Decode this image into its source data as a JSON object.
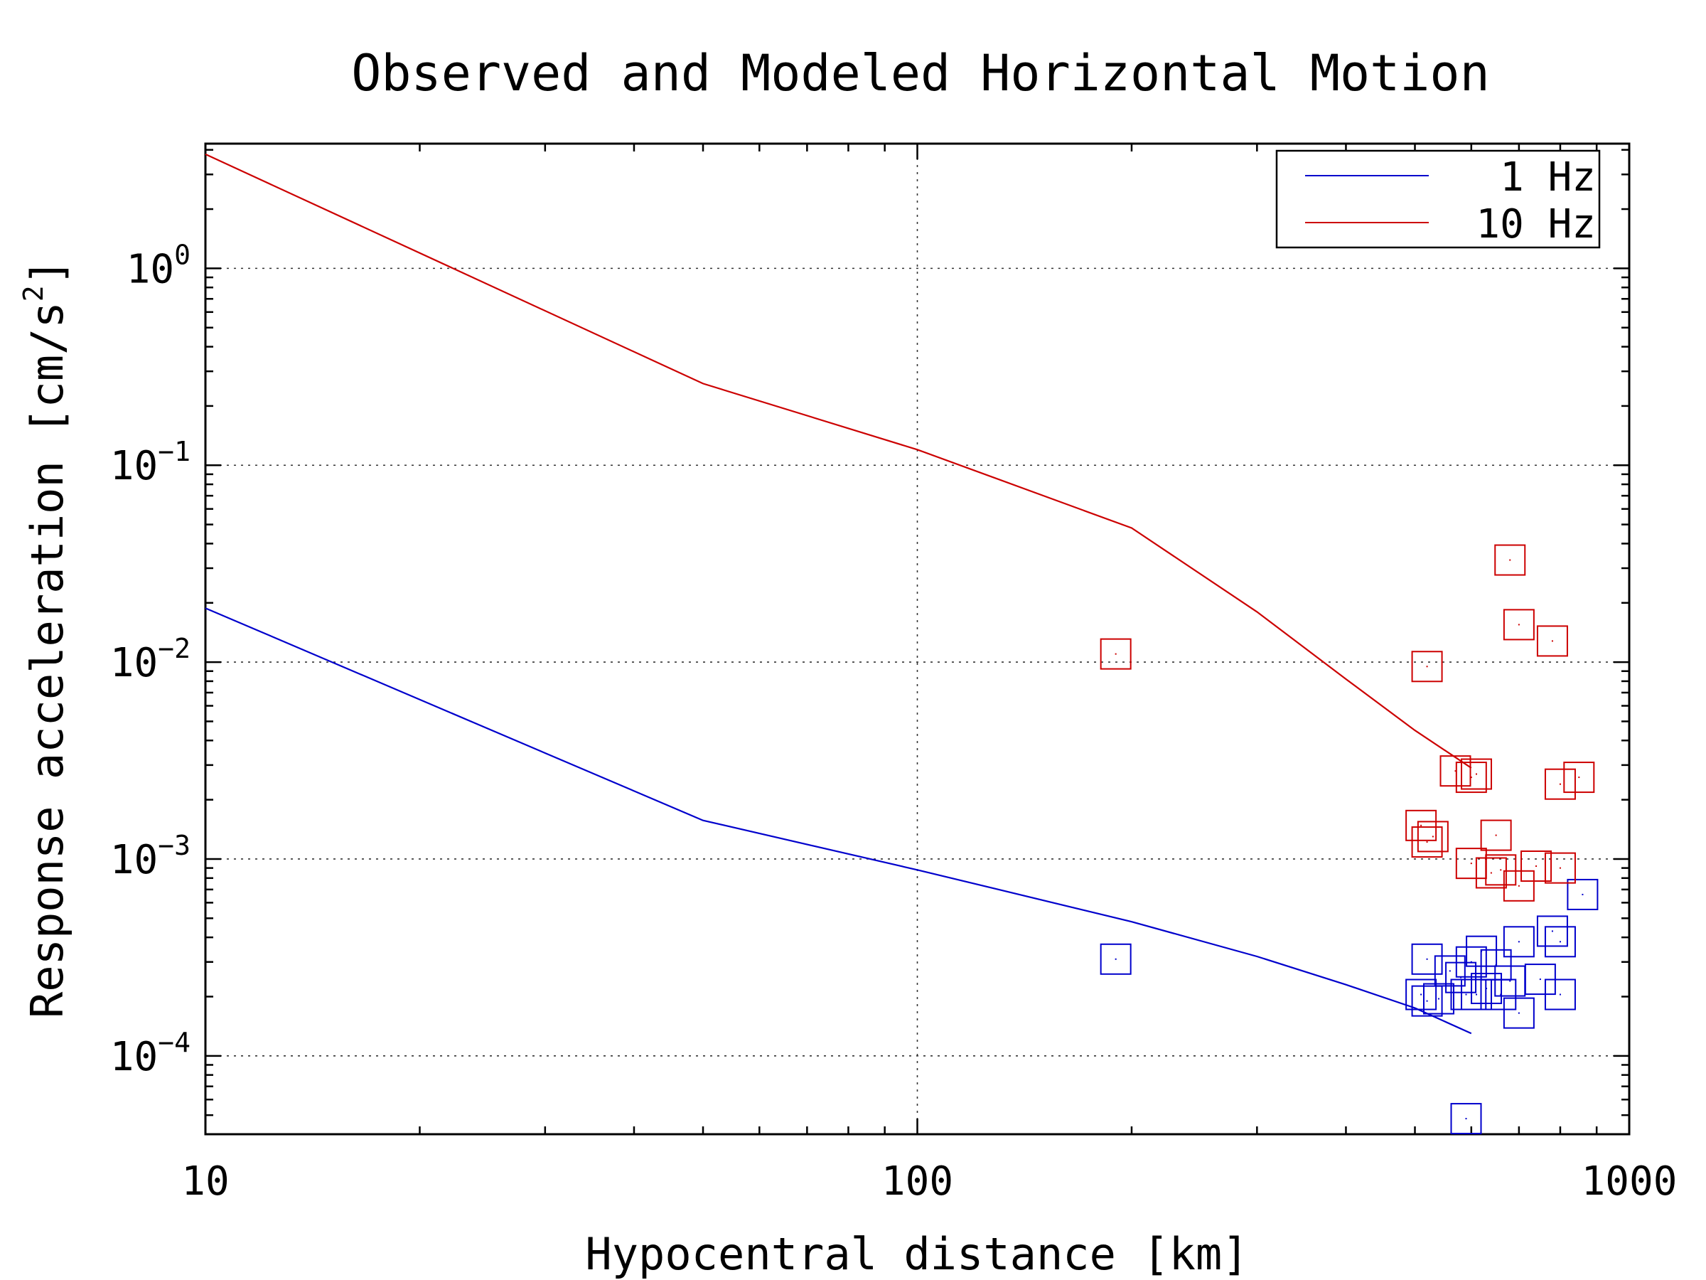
{
  "chart_data": {
    "type": "line",
    "title": "Observed and Modeled Horizontal Motion",
    "xlabel": "Hypocentral distance [km]",
    "ylabel": "Response acceleration [cm/s",
    "ylabel_sup": "2",
    "ylabel_end": "]",
    "x_scale": "log",
    "y_scale": "log",
    "xlim": [
      10,
      1000
    ],
    "ylim": [
      4e-05,
      4.3
    ],
    "grid": true,
    "legend_position": "top-right",
    "x_ticks": [
      {
        "value": 10,
        "label": "10"
      },
      {
        "value": 100,
        "label": "100"
      },
      {
        "value": 1000,
        "label": "1000"
      }
    ],
    "y_ticks": [
      {
        "value": 1,
        "base": "10",
        "exp": "0"
      },
      {
        "value": 0.1,
        "base": "10",
        "exp": "−1"
      },
      {
        "value": 0.01,
        "base": "10",
        "exp": "−2"
      },
      {
        "value": 0.001,
        "base": "10",
        "exp": "−3"
      },
      {
        "value": 0.0001,
        "base": "10",
        "exp": "−4"
      }
    ],
    "series": [
      {
        "name": "1 Hz",
        "color": "#0000cc",
        "line": [
          [
            10,
            0.0188
          ],
          [
            50,
            0.00157
          ],
          [
            100,
            0.00088
          ],
          [
            200,
            0.00048
          ],
          [
            300,
            0.00032
          ],
          [
            400,
            0.00023
          ],
          [
            500,
            0.000175
          ],
          [
            600,
            0.00013
          ]
        ],
        "observed": [
          [
            190,
            0.00031
          ],
          [
            520,
            0.00031
          ],
          [
            510,
            0.000205
          ],
          [
            520,
            0.00019
          ],
          [
            540,
            0.000195
          ],
          [
            560,
            0.00027
          ],
          [
            580,
            0.00025
          ],
          [
            590,
            0.000205
          ],
          [
            600,
            0.0003
          ],
          [
            610,
            0.000205
          ],
          [
            630,
            0.00022
          ],
          [
            620,
            0.00034
          ],
          [
            650,
            0.00029
          ],
          [
            660,
            0.000205
          ],
          [
            680,
            0.00024
          ],
          [
            700,
            0.00038
          ],
          [
            700,
            0.000165
          ],
          [
            750,
            0.000245
          ],
          [
            780,
            0.00043
          ],
          [
            800,
            0.000205
          ],
          [
            800,
            0.00038
          ],
          [
            860,
            0.00066
          ],
          [
            590,
            4.8e-05
          ]
        ]
      },
      {
        "name": "10 Hz",
        "color": "#cc0000",
        "line": [
          [
            10,
            3.8
          ],
          [
            50,
            0.26
          ],
          [
            100,
            0.12
          ],
          [
            200,
            0.048
          ],
          [
            300,
            0.018
          ],
          [
            400,
            0.0082
          ],
          [
            500,
            0.0045
          ],
          [
            600,
            0.0029
          ]
        ],
        "observed": [
          [
            190,
            0.011
          ],
          [
            520,
            0.0095
          ],
          [
            570,
            0.0028
          ],
          [
            600,
            0.0026
          ],
          [
            610,
            0.0027
          ],
          [
            680,
            0.033
          ],
          [
            700,
            0.0155
          ],
          [
            780,
            0.0128
          ],
          [
            800,
            0.0024
          ],
          [
            850,
            0.0026
          ],
          [
            510,
            0.00148
          ],
          [
            530,
            0.0013
          ],
          [
            520,
            0.00122
          ],
          [
            600,
            0.00095
          ],
          [
            640,
            0.00085
          ],
          [
            650,
            0.00132
          ],
          [
            660,
            0.00088
          ],
          [
            700,
            0.00073
          ],
          [
            740,
            0.00092
          ],
          [
            800,
            0.0009
          ]
        ]
      }
    ]
  }
}
